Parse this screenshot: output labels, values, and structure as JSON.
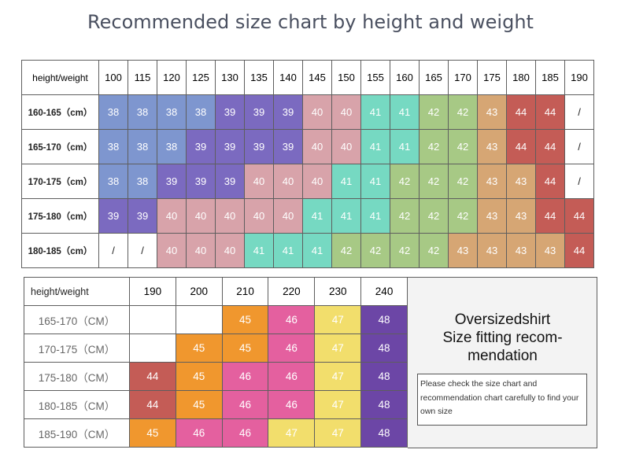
{
  "title": "Recommended size chart by height and weight",
  "chart_data": [
    {
      "type": "table",
      "corner_label": "height/weight",
      "columns": [
        "100",
        "115",
        "120",
        "125",
        "130",
        "135",
        "140",
        "145",
        "150",
        "155",
        "160",
        "165",
        "170",
        "175",
        "180",
        "185",
        "190"
      ],
      "rows": [
        {
          "label": "160-165（cm）",
          "values": [
            "38",
            "38",
            "38",
            "38",
            "39",
            "39",
            "39",
            "40",
            "40",
            "41",
            "41",
            "42",
            "42",
            "43",
            "44",
            "44",
            "/"
          ]
        },
        {
          "label": "165-170（cm）",
          "values": [
            "38",
            "38",
            "38",
            "39",
            "39",
            "39",
            "39",
            "40",
            "40",
            "41",
            "41",
            "42",
            "42",
            "43",
            "44",
            "44",
            "/"
          ]
        },
        {
          "label": "170-175（cm）",
          "values": [
            "38",
            "38",
            "39",
            "39",
            "39",
            "40",
            "40",
            "40",
            "41",
            "41",
            "42",
            "42",
            "42",
            "43",
            "43",
            "44",
            "/"
          ]
        },
        {
          "label": "175-180（cm）",
          "values": [
            "39",
            "39",
            "40",
            "40",
            "40",
            "40",
            "40",
            "41",
            "41",
            "41",
            "42",
            "42",
            "42",
            "43",
            "43",
            "44",
            "44"
          ]
        },
        {
          "label": "180-185（cm）",
          "values": [
            "/",
            "/",
            "40",
            "40",
            "40",
            "41",
            "41",
            "41",
            "42",
            "42",
            "42",
            "42",
            "43",
            "43",
            "43",
            "43",
            "44"
          ]
        }
      ]
    },
    {
      "type": "table",
      "corner_label": "height/weight",
      "columns": [
        "190",
        "200",
        "210",
        "220",
        "230",
        "240"
      ],
      "rows": [
        {
          "label": "165-170（CM）",
          "values": [
            "",
            "",
            "45",
            "46",
            "47",
            "48"
          ]
        },
        {
          "label": "170-175（CM）",
          "values": [
            "",
            "45",
            "45",
            "46",
            "47",
            "48"
          ]
        },
        {
          "label": "175-180（CM）",
          "values": [
            "44",
            "45",
            "46",
            "46",
            "47",
            "48"
          ]
        },
        {
          "label": "180-185（CM）",
          "values": [
            "44",
            "45",
            "46",
            "46",
            "47",
            "48"
          ]
        },
        {
          "label": "185-190（CM）",
          "values": [
            "45",
            "46",
            "46",
            "47",
            "47",
            "48"
          ]
        }
      ]
    }
  ],
  "size_colors": {
    "38": "#7e96cf",
    "39": "#7b6ac0",
    "40": "#d8a3aa",
    "41": "#76d9c2",
    "42": "#a7c985",
    "43": "#d6a674",
    "44": "#c45c56",
    "45": "#f0972e",
    "46": "#e4609f",
    "47": "#f2de6c",
    "48": "#6c46a6"
  },
  "panel": {
    "title_lines": [
      "Oversizedshirt",
      "Size fitting recom-",
      "mendation"
    ],
    "note": "Please check the size chart and recommendation chart carefully to find your own size"
  }
}
